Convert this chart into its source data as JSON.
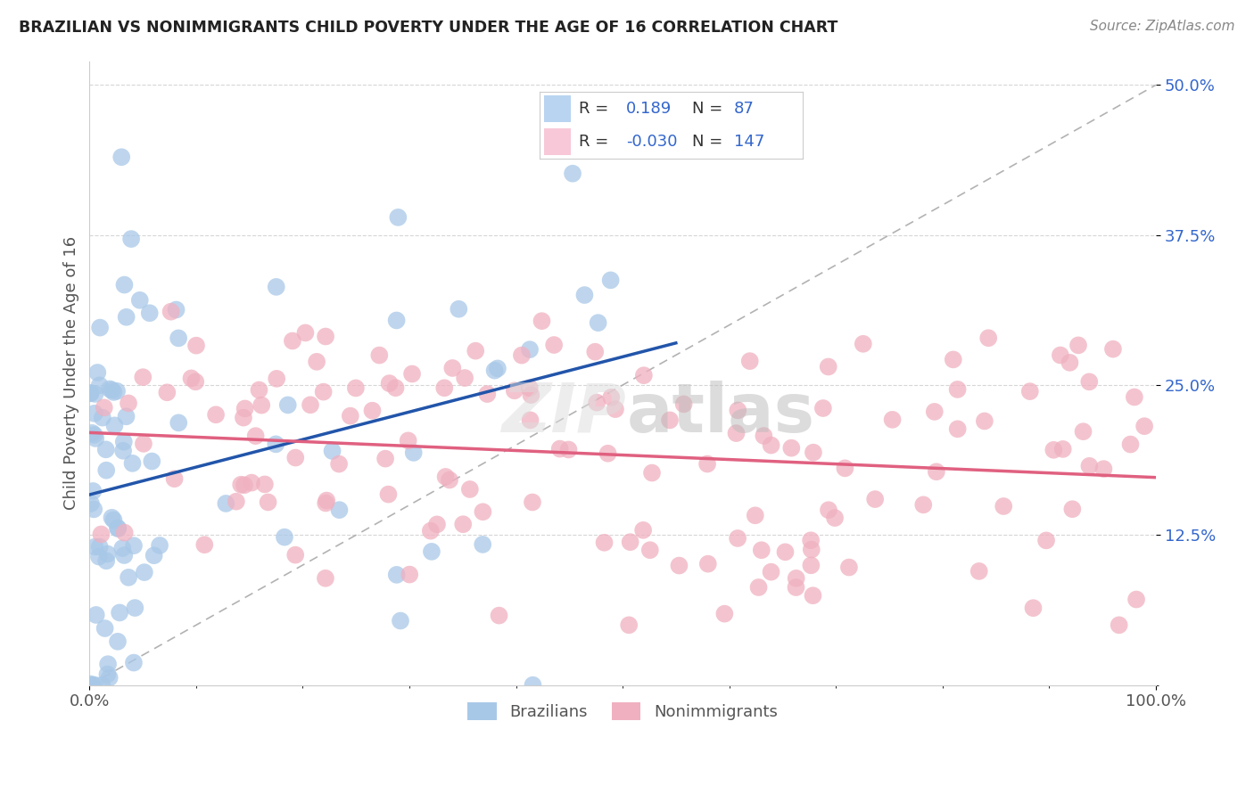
{
  "title": "BRAZILIAN VS NONIMMIGRANTS CHILD POVERTY UNDER THE AGE OF 16 CORRELATION CHART",
  "source": "Source: ZipAtlas.com",
  "ylabel": "Child Poverty Under the Age of 16",
  "xlim": [
    0,
    100
  ],
  "ylim": [
    0,
    52
  ],
  "r_brazilian": 0.189,
  "n_brazilian": 87,
  "r_nonimmigrant": -0.03,
  "n_nonimmigrant": 147,
  "blue_dot_color": "#A8C8E8",
  "pink_dot_color": "#F0B0C0",
  "blue_line_color": "#2255AA",
  "pink_line_color": "#E06080",
  "legend_blue_fill": "#B8D4F0",
  "legend_pink_fill": "#F8C8D8",
  "r_text_color": "#3366CC",
  "n_label_color": "#333333",
  "background_color": "#FFFFFF",
  "grid_color": "#CCCCCC",
  "title_color": "#222222",
  "source_color": "#888888",
  "ytick_color": "#3366CC",
  "seed": 12345
}
